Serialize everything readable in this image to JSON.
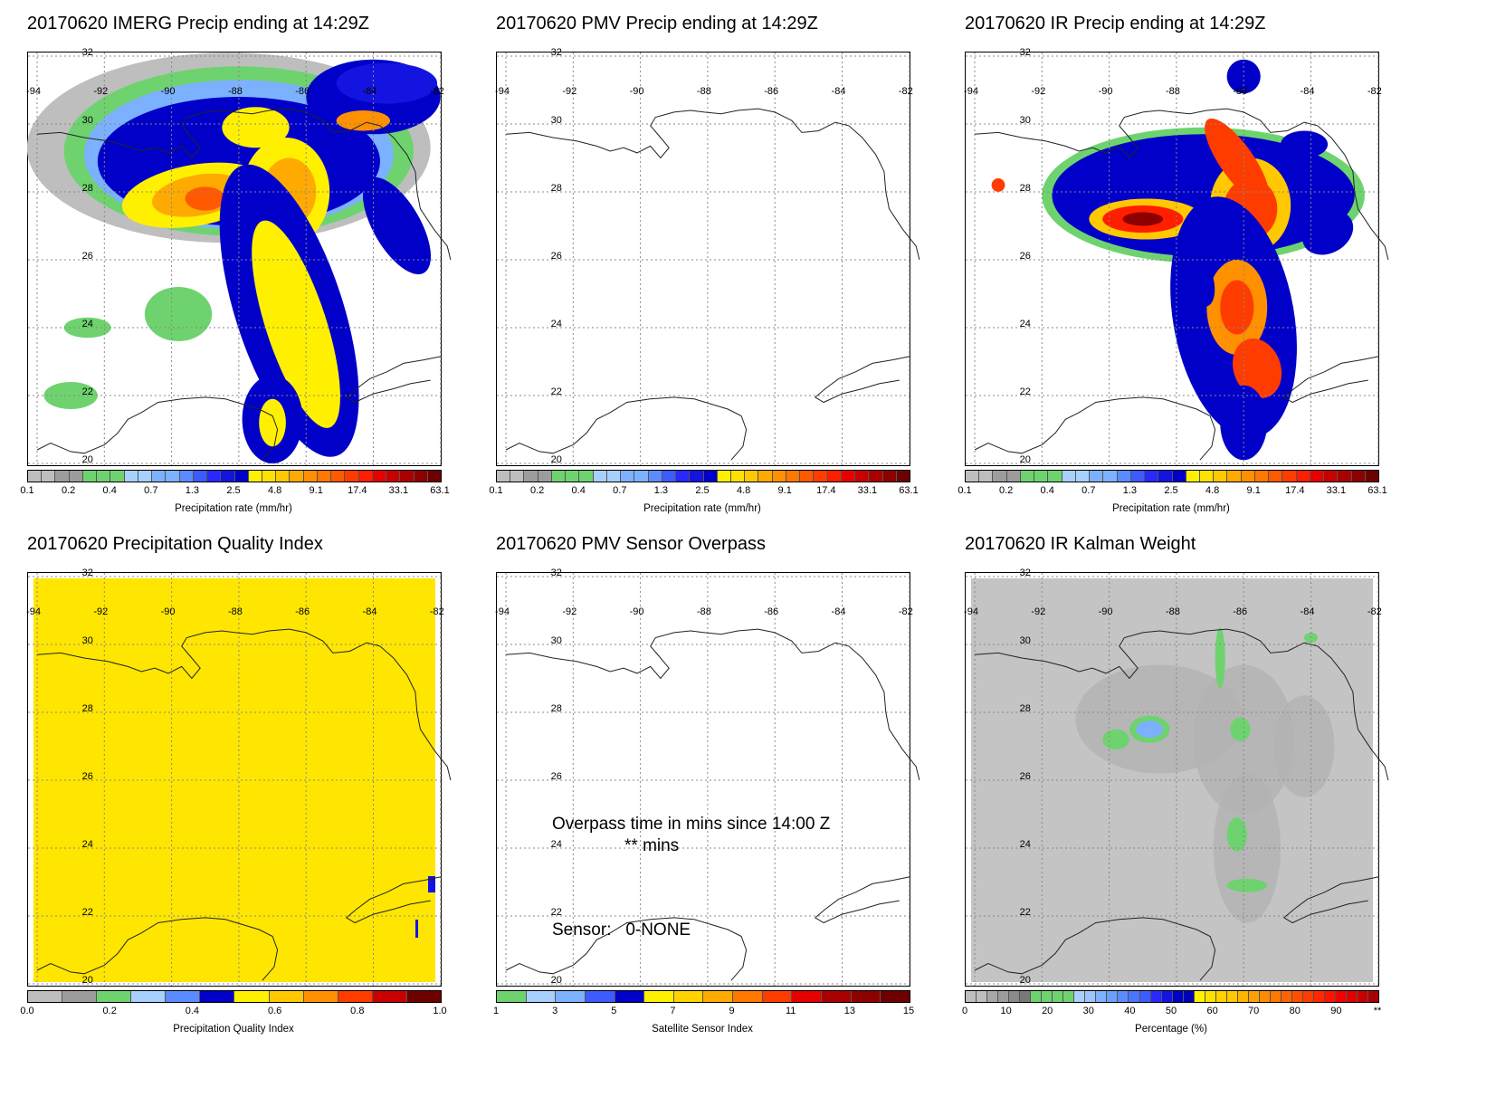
{
  "panels": [
    {
      "id": "imerg",
      "title": "20170620 IMERG Precip ending at 14:29Z",
      "cbar": "precip",
      "cbar_label": "Precipitation rate (mm/hr)",
      "fill": "imerg"
    },
    {
      "id": "pmv",
      "title": "20170620 PMV Precip ending at 14:29Z",
      "cbar": "precip",
      "cbar_label": "Precipitation rate (mm/hr)",
      "fill": "none"
    },
    {
      "id": "ir",
      "title": "20170620 IR Precip ending at 14:29Z",
      "cbar": "precip",
      "cbar_label": "Precipitation rate (mm/hr)",
      "fill": "ir"
    },
    {
      "id": "pqi",
      "title": "20170620 Precipitation Quality Index",
      "cbar": "quality",
      "cbar_label": "Precipitation Quality Index",
      "fill": "quality"
    },
    {
      "id": "overpass",
      "title": "20170620 PMV Sensor Overpass",
      "cbar": "sensor",
      "cbar_label": "Satellite Sensor Index",
      "fill": "none",
      "overlay": {
        "line1": "Overpass time in mins since 14:00 Z",
        "line2": "** mins",
        "sensor": "Sensor:   0-NONE"
      }
    },
    {
      "id": "kalman",
      "title": "20170620 IR Kalman Weight",
      "cbar": "percent",
      "cbar_label": "Percentage (%)",
      "fill": "kalman"
    }
  ],
  "map": {
    "lon_labels": [
      "-94",
      "-92",
      "-90",
      "-88",
      "-86",
      "-84",
      "-82"
    ],
    "lat_labels": [
      "32",
      "30",
      "28",
      "26",
      "24",
      "22",
      "20"
    ]
  },
  "colorbars": {
    "precip": {
      "colors": [
        "#bebebe",
        "#bebebe",
        "#9c9c9c",
        "#9c9c9c",
        "#6ed36e",
        "#6ed36e",
        "#6ed36e",
        "#a8d0ff",
        "#a8d0ff",
        "#7cb1ff",
        "#7cb1ff",
        "#5b8cff",
        "#3c5cff",
        "#2828ff",
        "#1414e0",
        "#0000c8",
        "#fff000",
        "#ffe100",
        "#ffc800",
        "#ffaa00",
        "#ff9000",
        "#ff7800",
        "#ff5a00",
        "#ff3c00",
        "#ff1e00",
        "#e60000",
        "#c80000",
        "#aa0000",
        "#8c0000",
        "#6e0000"
      ],
      "ticks": [
        "0.1",
        "0.2",
        "0.4",
        "0.7",
        "1.3",
        "2.5",
        "4.8",
        "9.1",
        "17.4",
        "33.1",
        "63.1"
      ]
    },
    "quality": {
      "colors": [
        "#bebebe",
        "#9c9c9c",
        "#6ed36e",
        "#a8d0ff",
        "#5b8cff",
        "#0000c8",
        "#fff000",
        "#ffc800",
        "#ff9000",
        "#ff3c00",
        "#c80000",
        "#6e0000"
      ],
      "ticks": [
        "0.0",
        "0.2",
        "0.4",
        "0.6",
        "0.8",
        "1.0"
      ]
    },
    "sensor": {
      "colors": [
        "#6ed36e",
        "#a8d0ff",
        "#7cb1ff",
        "#3c5cff",
        "#0000c8",
        "#fff000",
        "#ffd200",
        "#ffaa00",
        "#ff7800",
        "#ff3c00",
        "#e60000",
        "#aa0000",
        "#8c0000",
        "#6e0000"
      ],
      "ticks": [
        "1",
        "3",
        "5",
        "7",
        "9",
        "11",
        "13",
        "15"
      ]
    },
    "percent": {
      "colors": [
        "#bebebe",
        "#bebebe",
        "#a8a8a8",
        "#9c9c9c",
        "#8a8a8a",
        "#787878",
        "#6ed36e",
        "#6ed36e",
        "#6ed36e",
        "#6ed36e",
        "#a8d0ff",
        "#9cc4ff",
        "#7cb1ff",
        "#6ba0ff",
        "#5b8cff",
        "#4b74ff",
        "#3c5cff",
        "#2828ff",
        "#1414e0",
        "#0000c8",
        "#0000b4",
        "#fff000",
        "#ffe100",
        "#ffd200",
        "#ffc800",
        "#ffb400",
        "#ffa000",
        "#ff8c00",
        "#ff7800",
        "#ff6400",
        "#ff5000",
        "#ff3c00",
        "#ff2800",
        "#ff1400",
        "#f00000",
        "#dc0000",
        "#c80000",
        "#aa0000"
      ],
      "ticks": [
        "0",
        "10",
        "20",
        "30",
        "40",
        "50",
        "60",
        "70",
        "80",
        "90",
        "**"
      ]
    }
  }
}
